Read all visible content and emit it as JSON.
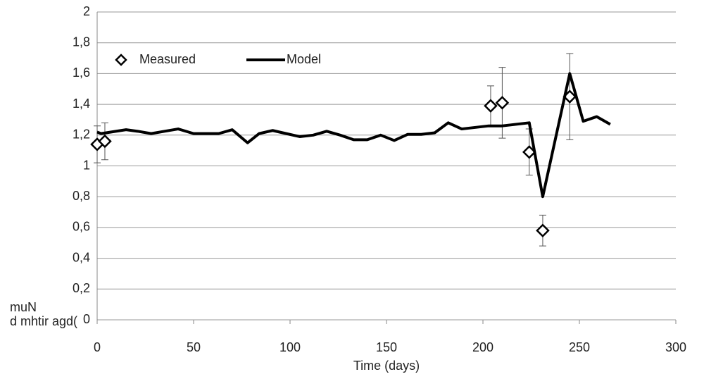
{
  "chart_data": {
    "type": "line",
    "xlabel": "Time (days)",
    "ylabel": [
      "muN",
      "d mhtir agd("
    ],
    "xlim": [
      0,
      300
    ],
    "xticks": [
      0,
      50,
      100,
      150,
      200,
      250,
      300
    ],
    "ylim": [
      0,
      2
    ],
    "yticks": [
      0,
      {
        "value": 0.2,
        "label": "0,2"
      },
      {
        "value": 0.4,
        "label": "0,4"
      },
      {
        "value": 0.6,
        "label": "0,6"
      },
      {
        "value": 0.8,
        "label": "0,8"
      },
      1,
      {
        "value": 1.2,
        "label": "1,2"
      },
      {
        "value": 1.4,
        "label": "1,4"
      },
      {
        "value": 1.6,
        "label": "1,6"
      },
      {
        "value": 1.8,
        "label": "1,8"
      },
      2
    ],
    "grid": true,
    "series": [
      {
        "name": "Measured",
        "color": "#000000",
        "marker": "diamond",
        "x": [
          0,
          4,
          204,
          210,
          224,
          231,
          245
        ],
        "values": [
          1.14,
          1.16,
          1.39,
          1.41,
          1.09,
          0.58,
          1.45
        ],
        "errors": [
          0.12,
          0.12,
          0.13,
          0.23,
          0.15,
          0.1,
          0.28
        ]
      },
      {
        "name": "Model",
        "color": "#000000",
        "x": [
          0,
          2,
          15,
          21,
          28,
          35,
          42,
          50,
          63,
          70,
          78,
          84,
          91,
          98,
          105,
          112,
          119,
          126,
          133,
          140,
          147,
          154,
          161,
          168,
          175,
          182,
          189,
          203,
          210,
          224,
          231,
          245,
          252,
          259,
          266
        ],
        "values": [
          1.22,
          1.21,
          1.235,
          1.225,
          1.21,
          1.225,
          1.24,
          1.21,
          1.21,
          1.235,
          1.15,
          1.21,
          1.23,
          1.21,
          1.19,
          1.2,
          1.225,
          1.2,
          1.17,
          1.17,
          1.2,
          1.165,
          1.205,
          1.205,
          1.215,
          1.28,
          1.24,
          1.26,
          1.26,
          1.28,
          0.8,
          1.6,
          1.29,
          1.32,
          1.27
        ]
      }
    ]
  }
}
